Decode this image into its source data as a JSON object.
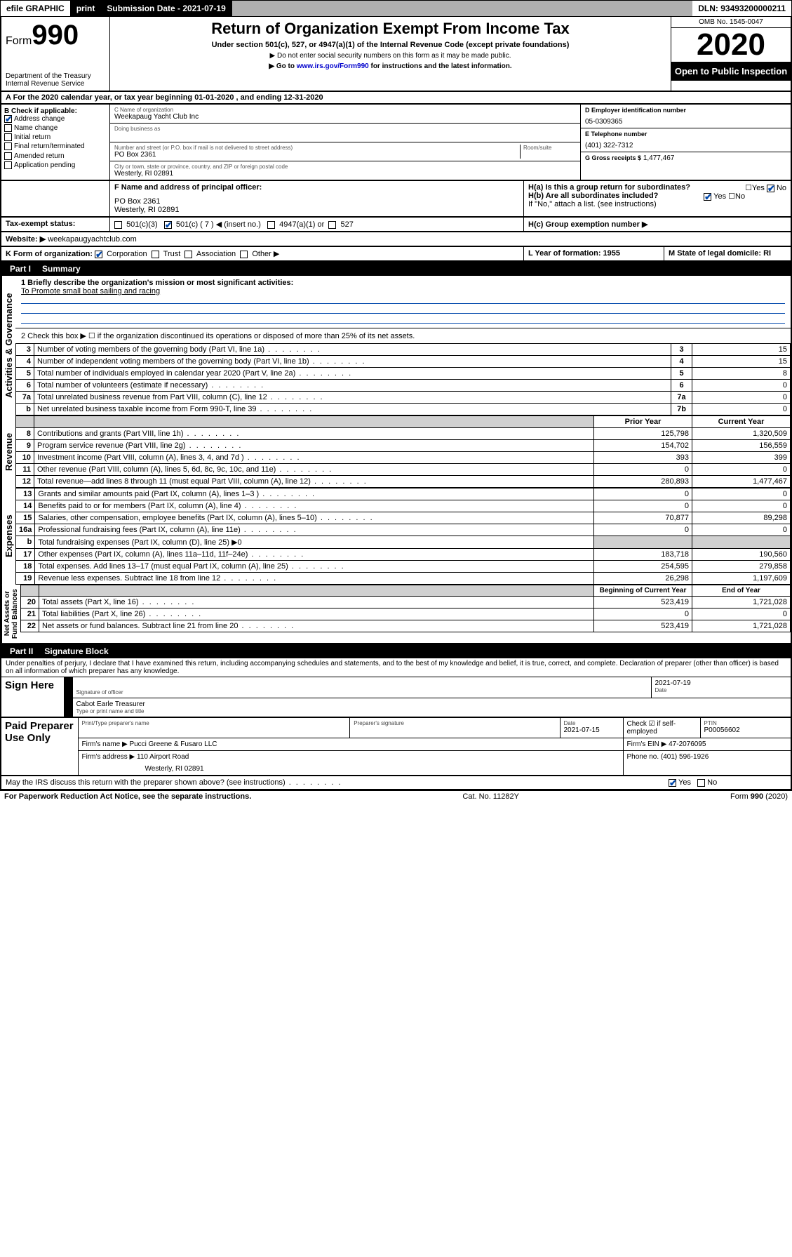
{
  "topbar": {
    "efile": "efile GRAPHIC",
    "print": "print",
    "submission_label": "Submission Date - 2021-07-19",
    "dln": "DLN: 93493200000211"
  },
  "header": {
    "form_prefix": "Form",
    "form_number": "990",
    "dept": "Department of the Treasury\nInternal Revenue Service",
    "title": "Return of Organization Exempt From Income Tax",
    "subtitle": "Under section 501(c), 527, or 4947(a)(1) of the Internal Revenue Code (except private foundations)",
    "note1": "▶ Do not enter social security numbers on this form as it may be made public.",
    "note2_pre": "▶ Go to ",
    "note2_link": "www.irs.gov/Form990",
    "note2_post": " for instructions and the latest information.",
    "omb": "OMB No. 1545-0047",
    "year": "2020",
    "open_public": "Open to Public Inspection"
  },
  "period": "A For the 2020 calendar year, or tax year beginning 01-01-2020   , and ending 12-31-2020",
  "boxB": {
    "label": "B Check if applicable:",
    "items": [
      {
        "label": "Address change",
        "checked": true
      },
      {
        "label": "Name change",
        "checked": false
      },
      {
        "label": "Initial return",
        "checked": false
      },
      {
        "label": "Final return/terminated",
        "checked": false
      },
      {
        "label": "Amended return",
        "checked": false
      },
      {
        "label": "Application pending",
        "checked": false
      }
    ]
  },
  "boxC": {
    "name_label": "C Name of organization",
    "name": "Weekapaug Yacht Club Inc",
    "dba_label": "Doing business as",
    "addr_label": "Number and street (or P.O. box if mail is not delivered to street address)",
    "room_label": "Room/suite",
    "addr": "PO Box 2361",
    "city_label": "City or town, state or province, country, and ZIP or foreign postal code",
    "city": "Westerly, RI  02891"
  },
  "boxD": {
    "label": "D Employer identification number",
    "value": "05-0309365"
  },
  "boxE": {
    "label": "E Telephone number",
    "value": "(401) 322-7312"
  },
  "boxG": {
    "label": "G Gross receipts $",
    "value": "1,477,467"
  },
  "boxF": {
    "label": "F Name and address of principal officer:",
    "line1": "PO Box 2361",
    "line2": "Westerly, RI  02891"
  },
  "boxH": {
    "a": "H(a)  Is this a group return for subordinates?",
    "a_no": "No",
    "b": "H(b)  Are all subordinates included?",
    "b_yes": "Yes",
    "b_note": "If \"No,\" attach a list. (see instructions)",
    "c": "H(c)  Group exemption number ▶"
  },
  "rowI": {
    "label": "Tax-exempt status:",
    "opts": [
      "501(c)(3)",
      "501(c) ( 7 ) ◀ (insert no.)",
      "4947(a)(1) or",
      "527"
    ],
    "checked_index": 1
  },
  "rowJ": {
    "label": "Website: ▶",
    "value": "weekapaugyachtclub.com"
  },
  "rowK": {
    "label": "K Form of organization:",
    "opts": [
      "Corporation",
      "Trust",
      "Association",
      "Other ▶"
    ],
    "checked_index": 0,
    "L": "L Year of formation: 1955",
    "M": "M State of legal domicile: RI"
  },
  "part1": {
    "title": "Part I",
    "subtitle": "Summary",
    "line1_label": "1  Briefly describe the organization's mission or most significant activities:",
    "line1_text": "To Promote small boat sailing and racing",
    "line2": "2   Check this box  ▶ ☐  if the organization discontinued its operations or disposed of more than 25% of its net assets.",
    "governance_rows": [
      {
        "n": "3",
        "desc": "Number of voting members of the governing body (Part VI, line 1a)",
        "box": "3",
        "val": "15"
      },
      {
        "n": "4",
        "desc": "Number of independent voting members of the governing body (Part VI, line 1b)",
        "box": "4",
        "val": "15"
      },
      {
        "n": "5",
        "desc": "Total number of individuals employed in calendar year 2020 (Part V, line 2a)",
        "box": "5",
        "val": "8"
      },
      {
        "n": "6",
        "desc": "Total number of volunteers (estimate if necessary)",
        "box": "6",
        "val": "0"
      },
      {
        "n": "7a",
        "desc": "Total unrelated business revenue from Part VIII, column (C), line 12",
        "box": "7a",
        "val": "0"
      },
      {
        "n": "b",
        "desc": "Net unrelated business taxable income from Form 990-T, line 39",
        "box": "7b",
        "val": "0"
      }
    ],
    "col_headers": {
      "prior": "Prior Year",
      "current": "Current Year"
    },
    "revenue_rows": [
      {
        "n": "8",
        "desc": "Contributions and grants (Part VIII, line 1h)",
        "prior": "125,798",
        "current": "1,320,509"
      },
      {
        "n": "9",
        "desc": "Program service revenue (Part VIII, line 2g)",
        "prior": "154,702",
        "current": "156,559"
      },
      {
        "n": "10",
        "desc": "Investment income (Part VIII, column (A), lines 3, 4, and 7d )",
        "prior": "393",
        "current": "399"
      },
      {
        "n": "11",
        "desc": "Other revenue (Part VIII, column (A), lines 5, 6d, 8c, 9c, 10c, and 11e)",
        "prior": "0",
        "current": "0"
      },
      {
        "n": "12",
        "desc": "Total revenue—add lines 8 through 11 (must equal Part VIII, column (A), line 12)",
        "prior": "280,893",
        "current": "1,477,467"
      }
    ],
    "expense_rows": [
      {
        "n": "13",
        "desc": "Grants and similar amounts paid (Part IX, column (A), lines 1–3 )",
        "prior": "0",
        "current": "0"
      },
      {
        "n": "14",
        "desc": "Benefits paid to or for members (Part IX, column (A), line 4)",
        "prior": "0",
        "current": "0"
      },
      {
        "n": "15",
        "desc": "Salaries, other compensation, employee benefits (Part IX, column (A), lines 5–10)",
        "prior": "70,877",
        "current": "89,298"
      },
      {
        "n": "16a",
        "desc": "Professional fundraising fees (Part IX, column (A), line 11e)",
        "prior": "0",
        "current": "0"
      },
      {
        "n": "b",
        "desc": "Total fundraising expenses (Part IX, column (D), line 25) ▶0",
        "prior": "",
        "current": "",
        "shade": true
      },
      {
        "n": "17",
        "desc": "Other expenses (Part IX, column (A), lines 11a–11d, 11f–24e)",
        "prior": "183,718",
        "current": "190,560"
      },
      {
        "n": "18",
        "desc": "Total expenses. Add lines 13–17 (must equal Part IX, column (A), line 25)",
        "prior": "254,595",
        "current": "279,858"
      },
      {
        "n": "19",
        "desc": "Revenue less expenses. Subtract line 18 from line 12",
        "prior": "26,298",
        "current": "1,197,609"
      }
    ],
    "net_headers": {
      "begin": "Beginning of Current Year",
      "end": "End of Year"
    },
    "net_rows": [
      {
        "n": "20",
        "desc": "Total assets (Part X, line 16)",
        "prior": "523,419",
        "current": "1,721,028"
      },
      {
        "n": "21",
        "desc": "Total liabilities (Part X, line 26)",
        "prior": "0",
        "current": "0"
      },
      {
        "n": "22",
        "desc": "Net assets or fund balances. Subtract line 21 from line 20",
        "prior": "523,419",
        "current": "1,721,028"
      }
    ]
  },
  "part2": {
    "title": "Part II",
    "subtitle": "Signature Block",
    "perjury": "Under penalties of perjury, I declare that I have examined this return, including accompanying schedules and statements, and to the best of my knowledge and belief, it is true, correct, and complete. Declaration of preparer (other than officer) is based on all information of which preparer has any knowledge.",
    "sign_here": "Sign Here",
    "sig_officer": "Signature of officer",
    "sig_date": "2021-07-19",
    "date_label": "Date",
    "officer_name": "Cabot Earle  Treasurer",
    "officer_name_label": "Type or print name and title",
    "paid": "Paid Preparer Use Only",
    "prep_name_label": "Print/Type preparer's name",
    "prep_sig_label": "Preparer's signature",
    "prep_date_label": "Date",
    "prep_date": "2021-07-15",
    "self_emp": "Check ☑ if self-employed",
    "ptin_label": "PTIN",
    "ptin": "P00056602",
    "firm_name_label": "Firm's name    ▶",
    "firm_name": "Pucci Greene & Fusaro LLC",
    "firm_ein_label": "Firm's EIN ▶",
    "firm_ein": "47-2076095",
    "firm_addr_label": "Firm's address ▶",
    "firm_addr1": "110 Airport Road",
    "firm_addr2": "Westerly, RI  02891",
    "phone_label": "Phone no.",
    "phone": "(401) 596-1926",
    "discuss": "May the IRS discuss this return with the preparer shown above? (see instructions)",
    "discuss_yes": "Yes"
  },
  "footer": {
    "left": "For Paperwork Reduction Act Notice, see the separate instructions.",
    "mid": "Cat. No. 11282Y",
    "right": "Form 990 (2020)"
  }
}
